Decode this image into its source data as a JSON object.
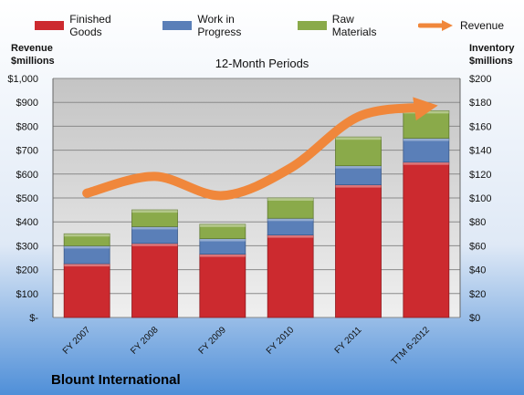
{
  "chart_data": {
    "type": "bar",
    "title": "12-Month Periods",
    "company": "Blount International",
    "categories": [
      "FY 2007",
      "FY 2008",
      "FY 2009",
      "FY 2010",
      "FY 2011",
      "TTM 6-2012"
    ],
    "series": [
      {
        "name": "Finished Goods",
        "axis": "right",
        "color": "#cc2a2f",
        "values": [
          45,
          62,
          53,
          69,
          111,
          130
        ]
      },
      {
        "name": "Work in Progress",
        "axis": "right",
        "color": "#5a7fb8",
        "values": [
          15,
          14,
          13,
          14,
          16,
          20
        ]
      },
      {
        "name": "Raw Materials",
        "axis": "right",
        "color": "#8aaa4a",
        "values": [
          10,
          14,
          12,
          17,
          24,
          23
        ]
      },
      {
        "name": "Revenue",
        "axis": "left",
        "type": "line",
        "color": "#f0873b",
        "values": [
          520,
          590,
          510,
          625,
          840,
          880
        ]
      }
    ],
    "y_left": {
      "label_line1": "Revenue",
      "label_line2": "$millions",
      "min": 0,
      "max": 1000,
      "ticks": [
        "$-",
        "$100",
        "$200",
        "$300",
        "$400",
        "$500",
        "$600",
        "$700",
        "$800",
        "$900",
        "$1,000"
      ]
    },
    "y_right": {
      "label_line1": "Inventory",
      "label_line2": "$millions",
      "min": 0,
      "max": 200,
      "ticks": [
        "$0",
        "$20",
        "$40",
        "$60",
        "$80",
        "$100",
        "$120",
        "$140",
        "$160",
        "$180",
        "$200"
      ]
    },
    "stacked": true,
    "grid": true,
    "legend_position": "top"
  }
}
